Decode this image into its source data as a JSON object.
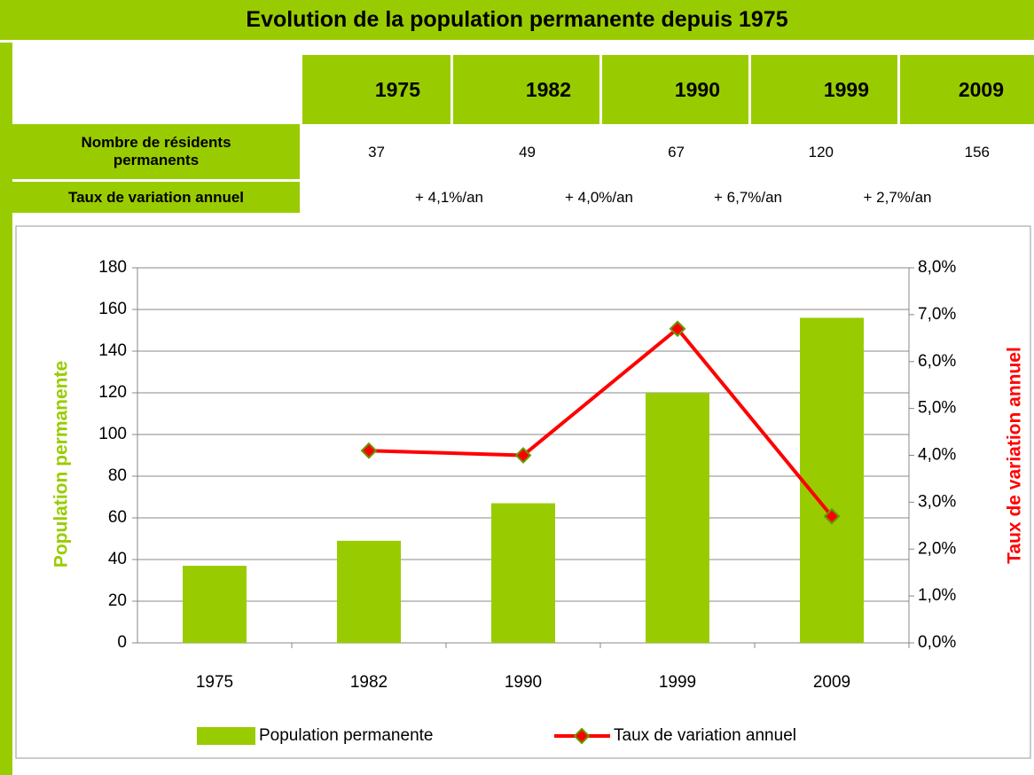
{
  "table": {
    "title": "Evolution de la population permanente depuis 1975",
    "years": [
      "1975",
      "1982",
      "1990",
      "1999",
      "2009"
    ],
    "rows": [
      {
        "label": "Nombre de résidents permanents",
        "values": [
          37,
          49,
          67,
          120,
          156
        ]
      },
      {
        "label": "Taux de variation annuel",
        "values": [
          "+ 4,1%/an",
          "+ 4,0%/an",
          "+ 6,7%/an",
          "+ 2,7%/an"
        ]
      }
    ]
  },
  "chart_data": {
    "type": "bar",
    "categories": [
      "1975",
      "1982",
      "1990",
      "1999",
      "2009"
    ],
    "series": [
      {
        "name": "Population permanente",
        "color": "#99cc00",
        "values": [
          37,
          49,
          67,
          120,
          156
        ]
      },
      {
        "name": "Taux de variation annuel",
        "type": "line",
        "axis": "y2",
        "color": "#ff0000",
        "marker_color": "#669900",
        "values": [
          null,
          4.1,
          4.0,
          6.7,
          2.7
        ]
      }
    ],
    "ylabel": "Population permanente",
    "y2label": "Taux de variation annuel",
    "ylim": [
      0,
      180
    ],
    "yticks": [
      0,
      20,
      40,
      60,
      80,
      100,
      120,
      140,
      160,
      180
    ],
    "y2lim": [
      0,
      8
    ],
    "y2ticks": [
      {
        "value": 0,
        "label": "0,0%"
      },
      {
        "value": 1,
        "label": "1,0%"
      },
      {
        "value": 2,
        "label": "2,0%"
      },
      {
        "value": 3,
        "label": "3,0%"
      },
      {
        "value": 4,
        "label": "4,0%"
      },
      {
        "value": 5,
        "label": "5,0%"
      },
      {
        "value": 6,
        "label": "6,0%"
      },
      {
        "value": 7,
        "label": "7,0%"
      },
      {
        "value": 8,
        "label": "8,0%"
      }
    ],
    "grid": true,
    "legend": "bottom"
  }
}
